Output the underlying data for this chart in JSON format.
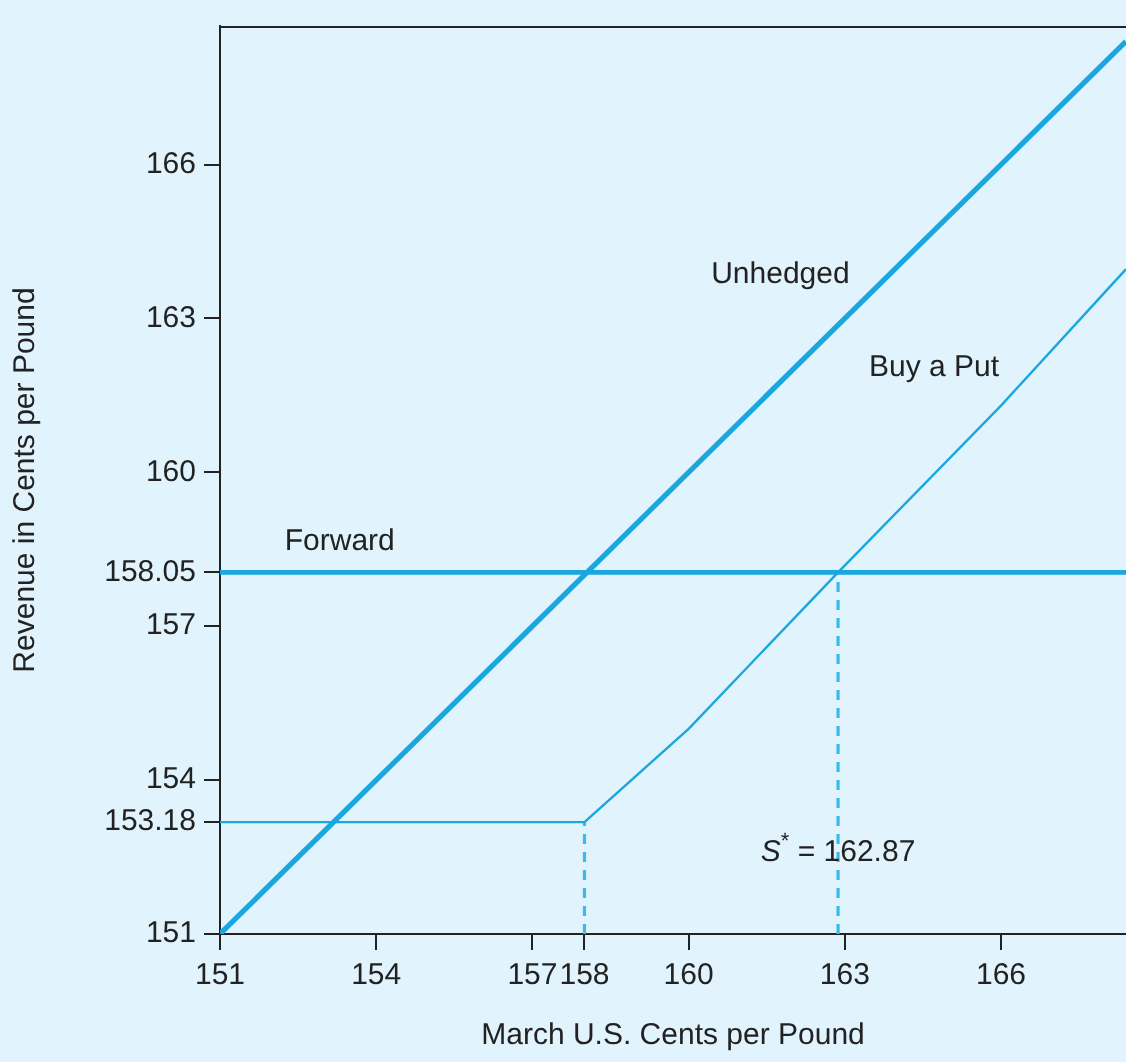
{
  "chart_data": {
    "type": "line",
    "xlabel": "March U.S. Cents per Pound",
    "ylabel": "Revenue in Cents per Pound",
    "xlim": [
      151,
      168.4
    ],
    "ylim": [
      151,
      168.7
    ],
    "xticks": [
      151,
      154,
      157,
      158,
      160,
      163,
      166
    ],
    "yticks": [
      151,
      153.18,
      154,
      157,
      158.05,
      160,
      163,
      166
    ],
    "grid": false,
    "legend": false,
    "marker": "none",
    "series": [
      {
        "name": "Unhedged",
        "color": "#1aa7e0",
        "x": [
          151,
          168.4
        ],
        "values": [
          151,
          168.4
        ]
      },
      {
        "name": "Buy a Put",
        "color": "#1aa7e0",
        "x": [
          151,
          158,
          160,
          162.87,
          166,
          168.4
        ],
        "values": [
          153.18,
          153.18,
          155.0,
          158.05,
          161.3,
          163.96
        ]
      },
      {
        "name": "Forward",
        "color": "#1aa7e0",
        "x": [
          151,
          168.4
        ],
        "values": [
          158.05,
          158.05
        ]
      },
      {
        "color": "#3cb8ec",
        "line_style": "dashed",
        "x": [
          158,
          158
        ],
        "values": [
          151,
          153.18
        ]
      },
      {
        "color": "#3cb8ec",
        "line_style": "dashed",
        "x": [
          162.87,
          162.87
        ],
        "values": [
          151,
          158.05
        ]
      }
    ],
    "annotations": [
      {
        "text": "S$^{*}$ = 162.87",
        "x": 162.87,
        "y": 152.3
      }
    ]
  }
}
